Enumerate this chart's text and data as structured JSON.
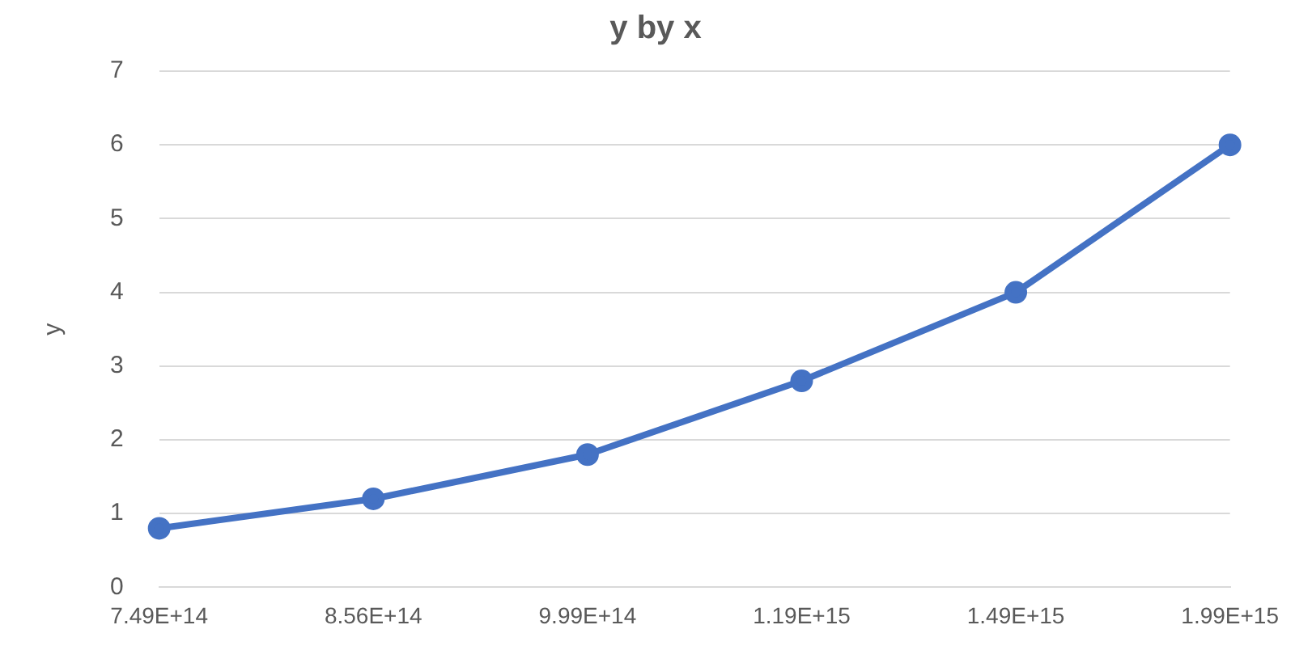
{
  "chart_data": {
    "type": "line",
    "title": "y by x",
    "ylabel": "y",
    "categories": [
      "7.49E+14",
      "8.56E+14",
      "9.99E+14",
      "1.19E+15",
      "1.49E+15",
      "1.99E+15"
    ],
    "series": [
      {
        "color": "#4472c4",
        "values": [
          0.8,
          1.2,
          1.8,
          2.8,
          4.0,
          6.0
        ]
      }
    ],
    "ylim": [
      0,
      7
    ],
    "yticks": [
      0,
      1,
      2,
      3,
      4,
      5,
      6,
      7
    ],
    "grid": "y",
    "legend": false,
    "marker": "circle",
    "line_style": "solid"
  }
}
